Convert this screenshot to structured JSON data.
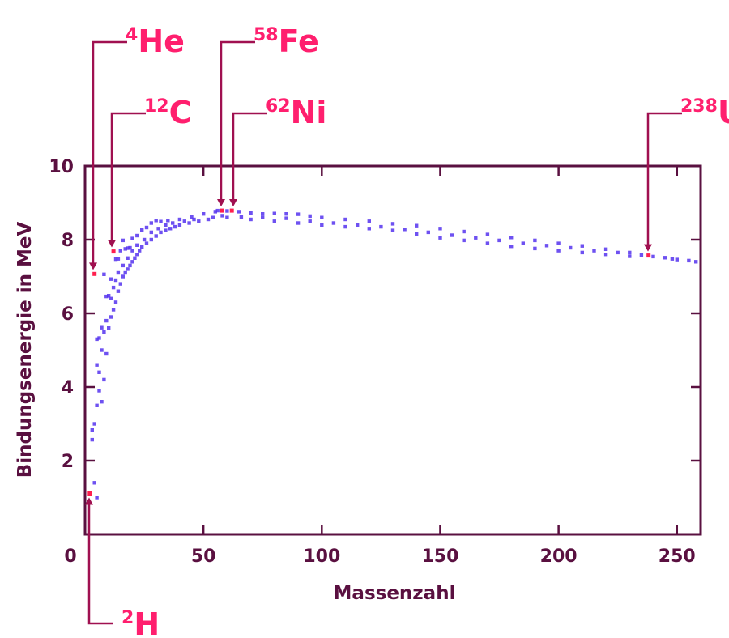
{
  "colors": {
    "axis": "#5a1040",
    "points": "#5533ee",
    "highlight": "#ff1f4e",
    "annotation_text": "#ff1f6e",
    "annotation_line": "#a01050"
  },
  "chart_data": {
    "type": "scatter",
    "xlabel": "Massenzahl",
    "ylabel": "Bindungsenergie in MeV",
    "xlim": [
      0,
      260
    ],
    "ylim": [
      0,
      10
    ],
    "xticks": [
      0,
      50,
      100,
      150,
      200,
      250
    ],
    "yticks": [
      2,
      4,
      6,
      8,
      10
    ],
    "grid": false,
    "series": [
      {
        "points": [
          [
            2,
            1.11
          ],
          [
            3,
            2.57
          ],
          [
            3,
            2.83
          ],
          [
            4,
            7.07
          ],
          [
            5,
            5.3
          ],
          [
            6,
            5.33
          ],
          [
            7,
            5.61
          ],
          [
            8,
            7.06
          ],
          [
            9,
            6.46
          ],
          [
            10,
            6.48
          ],
          [
            11,
            6.93
          ],
          [
            12,
            7.68
          ],
          [
            13,
            7.47
          ],
          [
            14,
            7.48
          ],
          [
            15,
            7.7
          ],
          [
            16,
            7.98
          ],
          [
            17,
            7.75
          ],
          [
            18,
            7.77
          ],
          [
            19,
            7.78
          ],
          [
            20,
            8.03
          ],
          [
            22,
            8.11
          ],
          [
            24,
            8.26
          ],
          [
            26,
            8.33
          ],
          [
            28,
            8.45
          ],
          [
            30,
            8.52
          ],
          [
            32,
            8.49
          ],
          [
            35,
            8.52
          ],
          [
            40,
            8.55
          ],
          [
            45,
            8.62
          ],
          [
            50,
            8.7
          ],
          [
            55,
            8.76
          ],
          [
            56,
            8.79
          ],
          [
            58,
            8.79
          ],
          [
            60,
            8.78
          ],
          [
            62,
            8.79
          ],
          [
            65,
            8.76
          ],
          [
            70,
            8.73
          ],
          [
            75,
            8.7
          ],
          [
            80,
            8.71
          ],
          [
            85,
            8.7
          ],
          [
            90,
            8.69
          ],
          [
            95,
            8.64
          ],
          [
            100,
            8.6
          ],
          [
            110,
            8.55
          ],
          [
            120,
            8.5
          ],
          [
            130,
            8.43
          ],
          [
            140,
            8.38
          ],
          [
            150,
            8.3
          ],
          [
            160,
            8.22
          ],
          [
            170,
            8.14
          ],
          [
            180,
            8.06
          ],
          [
            190,
            7.98
          ],
          [
            200,
            7.9
          ],
          [
            210,
            7.83
          ],
          [
            220,
            7.74
          ],
          [
            230,
            7.65
          ],
          [
            238,
            7.57
          ],
          [
            245,
            7.51
          ],
          [
            250,
            7.46
          ],
          [
            258,
            7.4
          ],
          [
            5,
            4.6
          ],
          [
            6,
            3.9
          ],
          [
            7,
            3.6
          ],
          [
            8,
            4.2
          ],
          [
            9,
            4.9
          ],
          [
            10,
            5.6
          ],
          [
            11,
            5.9
          ],
          [
            12,
            6.1
          ],
          [
            13,
            6.3
          ],
          [
            14,
            6.6
          ],
          [
            15,
            6.8
          ],
          [
            16,
            7.0
          ],
          [
            17,
            7.1
          ],
          [
            18,
            7.2
          ],
          [
            19,
            7.3
          ],
          [
            20,
            7.4
          ],
          [
            21,
            7.5
          ],
          [
            22,
            7.6
          ],
          [
            23,
            7.7
          ],
          [
            24,
            7.8
          ],
          [
            26,
            7.9
          ],
          [
            28,
            8.0
          ],
          [
            30,
            8.1
          ],
          [
            32,
            8.2
          ],
          [
            34,
            8.25
          ],
          [
            36,
            8.3
          ],
          [
            38,
            8.35
          ],
          [
            40,
            8.4
          ],
          [
            44,
            8.45
          ],
          [
            48,
            8.5
          ],
          [
            52,
            8.55
          ],
          [
            60,
            8.6
          ],
          [
            70,
            8.55
          ],
          [
            80,
            8.5
          ],
          [
            90,
            8.45
          ],
          [
            100,
            8.4
          ],
          [
            110,
            8.35
          ],
          [
            120,
            8.3
          ],
          [
            130,
            8.25
          ],
          [
            140,
            8.15
          ],
          [
            150,
            8.05
          ],
          [
            160,
            7.98
          ],
          [
            170,
            7.9
          ],
          [
            180,
            7.82
          ],
          [
            190,
            7.76
          ],
          [
            200,
            7.7
          ],
          [
            210,
            7.65
          ],
          [
            220,
            7.6
          ],
          [
            230,
            7.55
          ],
          [
            4,
            1.4
          ],
          [
            5,
            1.0
          ],
          [
            4,
            3.0
          ],
          [
            5,
            3.5
          ],
          [
            6,
            4.4
          ],
          [
            7,
            5.0
          ],
          [
            8,
            5.5
          ],
          [
            9,
            5.8
          ],
          [
            11,
            6.4
          ],
          [
            12,
            6.7
          ],
          [
            13,
            6.9
          ],
          [
            14,
            7.1
          ],
          [
            16,
            7.3
          ],
          [
            18,
            7.5
          ],
          [
            20,
            7.7
          ],
          [
            22,
            7.85
          ],
          [
            25,
            8.0
          ],
          [
            28,
            8.2
          ],
          [
            31,
            8.3
          ],
          [
            34,
            8.4
          ],
          [
            37,
            8.45
          ],
          [
            42,
            8.5
          ],
          [
            46,
            8.55
          ],
          [
            54,
            8.6
          ],
          [
            58,
            8.65
          ],
          [
            66,
            8.62
          ],
          [
            75,
            8.6
          ],
          [
            85,
            8.58
          ],
          [
            95,
            8.5
          ],
          [
            105,
            8.45
          ],
          [
            115,
            8.4
          ],
          [
            125,
            8.35
          ],
          [
            135,
            8.28
          ],
          [
            145,
            8.2
          ],
          [
            155,
            8.12
          ],
          [
            165,
            8.05
          ],
          [
            175,
            7.98
          ],
          [
            185,
            7.9
          ],
          [
            195,
            7.84
          ],
          [
            205,
            7.78
          ],
          [
            215,
            7.7
          ],
          [
            225,
            7.65
          ],
          [
            235,
            7.58
          ],
          [
            240,
            7.54
          ],
          [
            248,
            7.48
          ],
          [
            255,
            7.43
          ]
        ]
      }
    ],
    "highlighted_points": [
      {
        "label_number": "2",
        "label_symbol": "H",
        "x": 2,
        "y": 1.11
      },
      {
        "label_number": "4",
        "label_symbol": "He",
        "x": 4,
        "y": 7.07
      },
      {
        "label_number": "12",
        "label_symbol": "C",
        "x": 12,
        "y": 7.68
      },
      {
        "label_number": "58",
        "label_symbol": "Fe",
        "x": 58,
        "y": 8.79
      },
      {
        "label_number": "62",
        "label_symbol": "Ni",
        "x": 62,
        "y": 8.79
      },
      {
        "label_number": "238",
        "label_symbol": "U",
        "x": 238,
        "y": 7.57
      }
    ]
  }
}
